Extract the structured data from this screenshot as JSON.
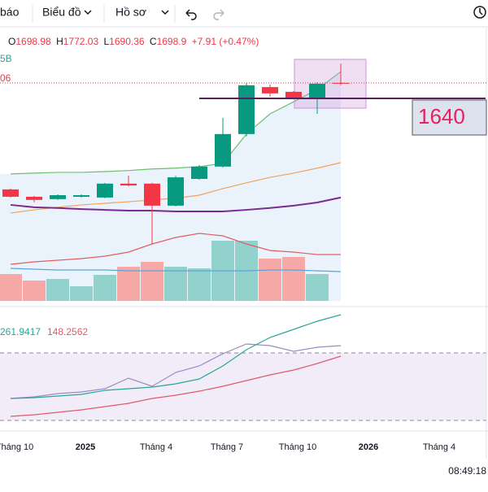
{
  "toolbar": {
    "left_cut": "báo",
    "chart_menu": "Biểu đồ",
    "profile_menu": "Hồ sơ"
  },
  "legend": {
    "open_prefix": "O",
    "high_prefix": "H",
    "low_prefix": "L",
    "close_prefix": "C",
    "change": "+7.91 (+0.47%)",
    "line1_cut": "5B",
    "line2_cut": "06"
  },
  "chart_data": {
    "type": "candlestick",
    "ylim": [
      868,
      1891
    ],
    "up_color": "#089981",
    "down_color": "#f23645",
    "candles": [
      {
        "open": 1293,
        "high": 1296,
        "low": 1262,
        "close": 1265
      },
      {
        "open": 1265,
        "high": 1268,
        "low": 1244,
        "close": 1253
      },
      {
        "open": 1256,
        "high": 1274,
        "low": 1253,
        "close": 1271
      },
      {
        "open": 1265,
        "high": 1274,
        "low": 1262,
        "close": 1271
      },
      {
        "open": 1262,
        "high": 1318,
        "low": 1259,
        "close": 1315
      },
      {
        "open": 1315,
        "high": 1345,
        "low": 1305,
        "close": 1308
      },
      {
        "open": 1315,
        "high": 1318,
        "low": 1085,
        "close": 1231
      },
      {
        "open": 1231,
        "high": 1345,
        "low": 1228,
        "close": 1339
      },
      {
        "open": 1333,
        "high": 1386,
        "low": 1330,
        "close": 1380
      },
      {
        "open": 1380,
        "high": 1566,
        "low": 1376,
        "close": 1504
      },
      {
        "open": 1504,
        "high": 1699,
        "low": 1495,
        "close": 1690
      },
      {
        "open": 1683,
        "high": 1693,
        "low": 1646,
        "close": 1659
      },
      {
        "open": 1665,
        "high": 1668,
        "low": 1640,
        "close": 1643
      },
      {
        "open": 1640,
        "high": 1702,
        "low": 1581,
        "close": 1696
      },
      {
        "open": 1698.98,
        "high": 1772.03,
        "low": 1690.36,
        "close": 1698.9
      }
    ],
    "price_line": 1640,
    "moving_averages": [
      {
        "color": "#6cbf6c",
        "values": [
          1352,
          1355,
          1358,
          1358,
          1361,
          1365,
          1371,
          1374,
          1380,
          1392,
          1504,
          1581,
          1627,
          1674,
          1742
        ]
      },
      {
        "color": "#f4a05a",
        "values": [
          1203,
          1215,
          1225,
          1234,
          1240,
          1246,
          1253,
          1259,
          1271,
          1296,
          1318,
          1339,
          1355,
          1374,
          1395
        ]
      },
      {
        "color": "#7b2b8f",
        "values": [
          1234,
          1225,
          1222,
          1218,
          1215,
          1212,
          1212,
          1209,
          1209,
          1209,
          1215,
          1222,
          1231,
          1243,
          1262
        ]
      }
    ],
    "volume": {
      "ylim": [
        0,
        100
      ],
      "up_color": "#92d2cc",
      "down_color": "#f7a9a7",
      "values": [
        33,
        25,
        27,
        18,
        32,
        42,
        48,
        42,
        40,
        74,
        74,
        52,
        54,
        33,
        null
      ],
      "band": {
        "color": "#e06060",
        "values": [
          45,
          48,
          50,
          52,
          55,
          60,
          70,
          78,
          83,
          80,
          70,
          62,
          60,
          57,
          57
        ]
      },
      "average": {
        "color": "#5ba4d8",
        "values": [
          40,
          39,
          38,
          38,
          38,
          37,
          37,
          37,
          37,
          37,
          37,
          38,
          38,
          37,
          36
        ]
      }
    },
    "x_labels": [
      "Tháng 10",
      "2025",
      "Tháng 4",
      "Tháng 7",
      "Tháng 10",
      "2026",
      "Tháng 4"
    ]
  },
  "indicator": {
    "ylim": [
      0,
      300
    ],
    "labels": [
      "261.9417",
      "148.2562"
    ],
    "levels": [
      192,
      26
    ],
    "series": [
      {
        "color": "#9b8ac4",
        "values": [
          80,
          84,
          92,
          96,
          104,
          130,
          110,
          144,
          160,
          190,
          214,
          210,
          196,
          206,
          210
        ]
      },
      {
        "color": "#26a69a",
        "values": [
          80,
          82,
          86,
          90,
          100,
          104,
          108,
          116,
          128,
          160,
          200,
          230,
          250,
          270,
          286
        ]
      },
      {
        "color": "#e05a6a",
        "values": [
          36,
          40,
          46,
          52,
          60,
          68,
          80,
          88,
          98,
          110,
          124,
          138,
          150,
          166,
          184
        ]
      }
    ]
  },
  "clock": "08:49:18"
}
